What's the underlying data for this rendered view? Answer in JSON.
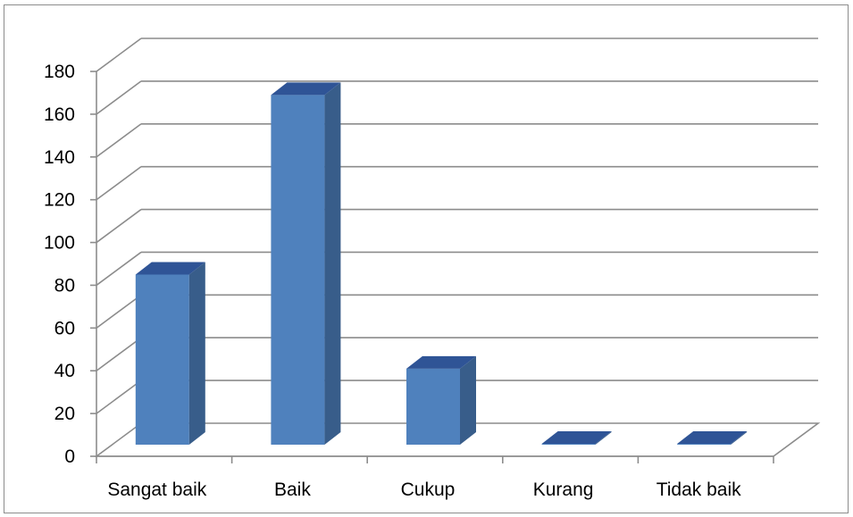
{
  "chart_data": {
    "type": "bar",
    "style": "3d-column",
    "categories": [
      "Sangat baik",
      "Baik",
      "Cukup",
      "Kurang",
      "Tidak baik"
    ],
    "series": [
      {
        "values": [
          85,
          169,
          41,
          1,
          1
        ]
      }
    ],
    "ylim": [
      0,
      180
    ],
    "yticks": [
      0,
      20,
      40,
      60,
      80,
      100,
      120,
      140,
      160,
      180
    ],
    "grid": true,
    "legend": "none",
    "title": "",
    "xlabel": "",
    "ylabel": ""
  },
  "colors": {
    "bar_front": "#4F81BD",
    "bar_side": "#385D8A",
    "bar_top": "#2F5496",
    "grid": "#8C8C8C",
    "axis": "#8C8C8C"
  }
}
